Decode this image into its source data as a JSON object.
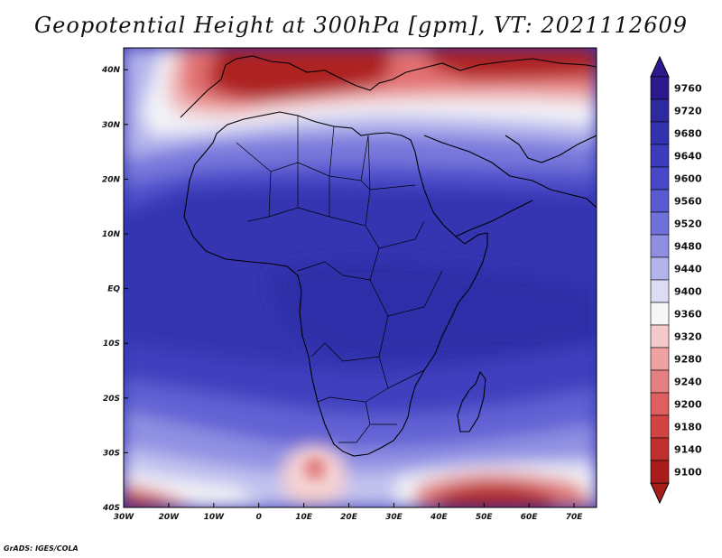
{
  "title": "Geopotential Height at 300hPa [gpm], VT: 2021112609",
  "credit": "GrADS: IGES/COLA",
  "map": {
    "region": "Africa",
    "lon_range": [
      -30,
      75
    ],
    "lat_range": [
      -40,
      44
    ],
    "lon_ticks": [
      {
        "value": -30,
        "label": "30W"
      },
      {
        "value": -20,
        "label": "20W"
      },
      {
        "value": -10,
        "label": "10W"
      },
      {
        "value": 0,
        "label": "0"
      },
      {
        "value": 10,
        "label": "10E"
      },
      {
        "value": 20,
        "label": "20E"
      },
      {
        "value": 30,
        "label": "30E"
      },
      {
        "value": 40,
        "label": "40E"
      },
      {
        "value": 50,
        "label": "50E"
      },
      {
        "value": 60,
        "label": "60E"
      },
      {
        "value": 70,
        "label": "70E"
      }
    ],
    "lat_ticks": [
      {
        "value": 40,
        "label": "40N"
      },
      {
        "value": 30,
        "label": "30N"
      },
      {
        "value": 20,
        "label": "20N"
      },
      {
        "value": 10,
        "label": "10N"
      },
      {
        "value": 0,
        "label": "EQ"
      },
      {
        "value": -10,
        "label": "10S"
      },
      {
        "value": -20,
        "label": "20S"
      },
      {
        "value": -30,
        "label": "30S"
      },
      {
        "value": -40,
        "label": "40S"
      }
    ],
    "features": [
      {
        "name": "high-equatorial-belt",
        "level": 9680
      },
      {
        "name": "low-mediterranean",
        "level": 9100
      },
      {
        "name": "low-southwest-atlantic",
        "level": 9100
      },
      {
        "name": "low-south-indian-ocean",
        "level": 9100
      },
      {
        "name": "low-cape-cutoff",
        "level": 9320
      }
    ]
  },
  "colorbar": {
    "levels": [
      9760,
      9720,
      9680,
      9640,
      9600,
      9560,
      9520,
      9480,
      9440,
      9400,
      9360,
      9320,
      9280,
      9240,
      9200,
      9180,
      9140,
      9100
    ],
    "colors": [
      "#2a1a8e",
      "#2c2a9e",
      "#3232ae",
      "#3b3bbb",
      "#4848c6",
      "#5a5ad0",
      "#7070d9",
      "#8f8fe2",
      "#b4b4ec",
      "#dcdcf5",
      "#f6f6f8",
      "#f4caca",
      "#efa2a2",
      "#e68080",
      "#dd5f5f",
      "#d24444",
      "#c02f2f",
      "#a81c1c"
    ]
  }
}
